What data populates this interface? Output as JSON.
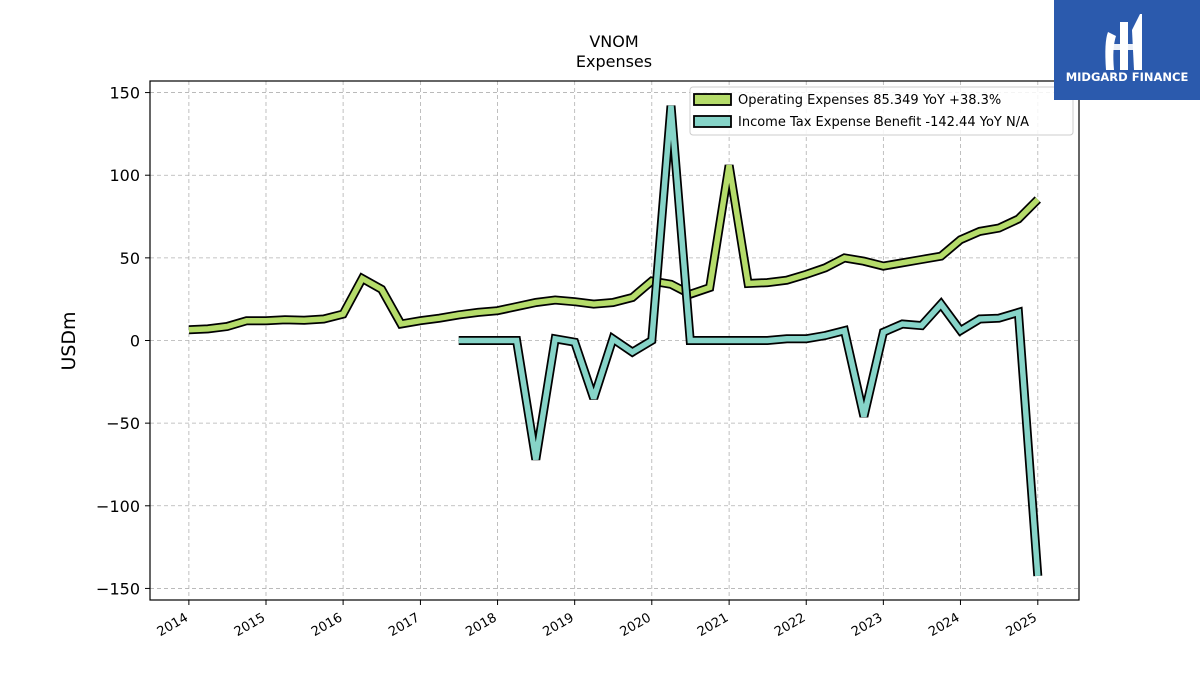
{
  "brand": {
    "name": "MIDGARD FINANCE",
    "color": "#2b5aad"
  },
  "chart_data": {
    "type": "line",
    "title": "VNOM",
    "subtitle": "Expenses",
    "xlabel": "",
    "ylabel": "USDm",
    "ylim": [
      -157,
      157
    ],
    "xlim": [
      "2013-07-01",
      "2025-07-15"
    ],
    "yticks": [
      150,
      100,
      50,
      0,
      -50,
      -100,
      -150
    ],
    "ytick_labels": [
      "150",
      "100",
      "50",
      "0",
      "−50",
      "−100",
      "−150"
    ],
    "xticks": [
      "2014-01-01",
      "2015-01-01",
      "2016-01-01",
      "2017-01-01",
      "2018-01-01",
      "2019-01-01",
      "2020-01-01",
      "2021-01-01",
      "2022-01-01",
      "2023-01-01",
      "2024-01-01",
      "2025-01-01"
    ],
    "xtick_labels": [
      "2014",
      "2015",
      "2016",
      "2017",
      "2018",
      "2019",
      "2020",
      "2021",
      "2022",
      "2023",
      "2024",
      "2025"
    ],
    "grid": true,
    "legend_position": "top-right",
    "series": [
      {
        "name": "Operating Expenses  85.349 YoY +38.3%",
        "color": "#b5dc6a",
        "x": [
          "2014-01-01",
          "2014-04-01",
          "2014-07-01",
          "2014-10-01",
          "2015-01-01",
          "2015-04-01",
          "2015-07-01",
          "2015-10-01",
          "2016-01-01",
          "2016-04-01",
          "2016-07-01",
          "2016-10-01",
          "2017-01-01",
          "2017-04-01",
          "2017-07-01",
          "2017-10-01",
          "2018-01-01",
          "2018-04-01",
          "2018-07-01",
          "2018-10-01",
          "2019-01-01",
          "2019-04-01",
          "2019-07-01",
          "2019-10-01",
          "2020-01-01",
          "2020-04-01",
          "2020-07-01",
          "2020-10-01",
          "2021-01-01",
          "2021-04-01",
          "2021-07-01",
          "2021-10-01",
          "2022-01-01",
          "2022-04-01",
          "2022-07-01",
          "2022-10-01",
          "2023-01-01",
          "2023-04-01",
          "2023-07-01",
          "2023-10-01",
          "2024-01-01",
          "2024-04-01",
          "2024-07-01",
          "2024-10-01",
          "2025-01-01"
        ],
        "values": [
          6.5,
          7,
          8.5,
          12,
          12,
          12.5,
          12.3,
          13,
          16,
          37.5,
          31,
          10,
          12,
          13.5,
          15.5,
          17,
          18,
          20.5,
          23,
          24.5,
          23.5,
          22,
          23,
          26,
          36,
          34,
          28,
          32,
          106,
          34.5,
          35,
          36.5,
          40,
          44,
          50,
          48,
          45,
          47,
          49,
          51,
          61,
          66,
          68,
          73.5,
          85.3
        ]
      },
      {
        "name": "Income Tax Expense Benefit  -142.44 YoY N/A",
        "color": "#86d4c8",
        "x": [
          "2017-07-01",
          "2017-10-01",
          "2018-01-01",
          "2018-04-01",
          "2018-07-01",
          "2018-10-01",
          "2019-01-01",
          "2019-04-01",
          "2019-07-01",
          "2019-10-01",
          "2020-01-01",
          "2020-04-01",
          "2020-07-01",
          "2020-10-01",
          "2021-01-01",
          "2021-04-01",
          "2021-07-01",
          "2021-10-01",
          "2022-01-01",
          "2022-04-01",
          "2022-07-01",
          "2022-10-01",
          "2023-01-01",
          "2023-04-01",
          "2023-07-01",
          "2023-10-01",
          "2024-01-01",
          "2024-04-01",
          "2024-07-01",
          "2024-10-01",
          "2025-01-01"
        ],
        "values": [
          0,
          0,
          0,
          0,
          -72,
          1,
          -1,
          -35,
          1,
          -7,
          0,
          142,
          0,
          0,
          0,
          0,
          0,
          1,
          1,
          3,
          6,
          -46,
          5,
          10,
          9,
          22,
          6,
          13,
          13.5,
          17,
          -142.4
        ]
      }
    ]
  }
}
